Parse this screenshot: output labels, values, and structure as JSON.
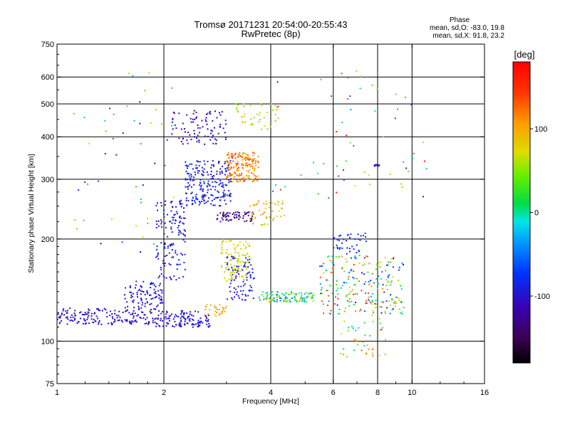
{
  "chart_data": {
    "type": "scatter",
    "title": "Tromsø 20171231 20:54:00-20:55:43",
    "subtitle": "RwPretec (8p)",
    "phase_info": {
      "heading": "Phase",
      "line_o": "mean, sd,O: -83.0, 19.8",
      "line_x": "mean, sd,X:  91.8, 23.2"
    },
    "xlabel": "Frequency [MHz]",
    "ylabel": "Stationary phase Virtual Height [km]",
    "x_scale": "log",
    "y_scale": "log",
    "xlim": [
      1,
      16
    ],
    "ylim": [
      75,
      750
    ],
    "x_ticks": [
      1,
      2,
      4,
      6,
      8,
      10,
      16
    ],
    "y_ticks": [
      75,
      100,
      200,
      300,
      400,
      500,
      600,
      750
    ],
    "x_grid": [
      2,
      4,
      6,
      8,
      10
    ],
    "y_grid": [
      100,
      200,
      300,
      400,
      500,
      600
    ],
    "grid": true,
    "colorbar": {
      "label": "[deg]",
      "range": [
        -180,
        180
      ],
      "ticks": [
        100,
        0,
        -100
      ],
      "tick_labels": [
        "100",
        "0",
        "-100"
      ]
    },
    "point_clusters": [
      {
        "x": [
          1.0,
          1.9
        ],
        "y": [
          112,
          125
        ],
        "phase": [
          -120,
          -90
        ],
        "n": 170
      },
      {
        "x": [
          1.9,
          2.7
        ],
        "y": [
          110,
          123
        ],
        "phase": [
          -110,
          -85
        ],
        "n": 120
      },
      {
        "x": [
          1.55,
          2.0
        ],
        "y": [
          125,
          150
        ],
        "phase": [
          -110,
          -80
        ],
        "n": 90
      },
      {
        "x": [
          1.9,
          2.3
        ],
        "y": [
          150,
          260
        ],
        "phase": [
          -110,
          -80
        ],
        "n": 140
      },
      {
        "x": [
          2.3,
          3.1
        ],
        "y": [
          250,
          340
        ],
        "phase": [
          -110,
          -70
        ],
        "n": 220
      },
      {
        "x": [
          2.1,
          3.0
        ],
        "y": [
          380,
          480
        ],
        "phase": [
          -120,
          -90
        ],
        "n": 90
      },
      {
        "x": [
          2.8,
          3.6
        ],
        "y": [
          225,
          240
        ],
        "phase": [
          -150,
          -110
        ],
        "n": 60
      },
      {
        "x": [
          3.0,
          3.7
        ],
        "y": [
          295,
          360
        ],
        "phase": [
          90,
          145
        ],
        "n": 160
      },
      {
        "x": [
          2.9,
          3.5
        ],
        "y": [
          150,
          200
        ],
        "phase": [
          50,
          100
        ],
        "n": 100
      },
      {
        "x": [
          2.6,
          3.0
        ],
        "y": [
          118,
          128
        ],
        "phase": [
          80,
          120
        ],
        "n": 30
      },
      {
        "x": [
          3.7,
          5.3
        ],
        "y": [
          130,
          140
        ],
        "phase": [
          -60,
          100
        ],
        "n": 120
      },
      {
        "x": [
          3.5,
          4.4
        ],
        "y": [
          220,
          260
        ],
        "phase": [
          60,
          120
        ],
        "n": 50
      },
      {
        "x": [
          3.2,
          4.2
        ],
        "y": [
          420,
          500
        ],
        "phase": [
          40,
          100
        ],
        "n": 40
      },
      {
        "x": [
          3.0,
          3.6
        ],
        "y": [
          130,
          180
        ],
        "phase": [
          -110,
          -70
        ],
        "n": 80
      },
      {
        "x": [
          5.5,
          9.5
        ],
        "y": [
          120,
          180
        ],
        "phase": [
          -100,
          150
        ],
        "n": 220
      },
      {
        "x": [
          6.0,
          7.5
        ],
        "y": [
          180,
          210
        ],
        "phase": [
          -100,
          -60
        ],
        "n": 40
      },
      {
        "x": [
          6.3,
          8.5
        ],
        "y": [
          90,
          120
        ],
        "phase": [
          -20,
          140
        ],
        "n": 40
      },
      {
        "x": [
          1.1,
          2.2
        ],
        "y": [
          180,
          620
        ],
        "phase": [
          -110,
          140
        ],
        "n": 50
      },
      {
        "x": [
          4.0,
          11.0
        ],
        "y": [
          250,
          640
        ],
        "phase": [
          -100,
          160
        ],
        "n": 60
      },
      {
        "x": [
          7.8,
          8.1
        ],
        "y": [
          328,
          332
        ],
        "phase": [
          -110,
          -100
        ],
        "n": 12
      }
    ]
  }
}
